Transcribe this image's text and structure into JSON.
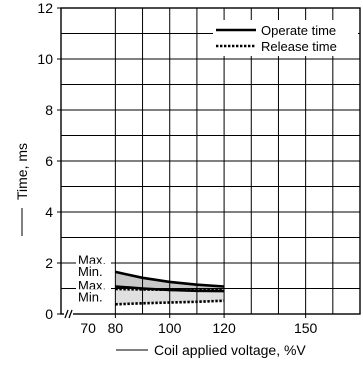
{
  "chart_data": {
    "type": "line",
    "title": "",
    "xlabel": "Coil applied voltage, %V",
    "ylabel": "Time, ms",
    "x_ticks": [
      70,
      80,
      100,
      120,
      150
    ],
    "x_tick_labels": [
      "70",
      "80",
      "100",
      "120",
      "150"
    ],
    "y_ticks": [
      0,
      2,
      4,
      6,
      8,
      10,
      12
    ],
    "y_tick_labels": [
      "0",
      "2",
      "4",
      "6",
      "8",
      "10",
      "12"
    ],
    "xlim": [
      60,
      170
    ],
    "ylim": [
      0,
      12
    ],
    "grid": true,
    "axis_break": true,
    "legend_position": "top-right",
    "series": [
      {
        "name": "Operate time",
        "style": "solid",
        "color": "#000000",
        "bands": [
          {
            "label": "Max.",
            "x": [
              80,
              90,
              100,
              110,
              120
            ],
            "y": [
              1.65,
              1.42,
              1.26,
              1.15,
              1.08
            ]
          },
          {
            "label": "Min.",
            "x": [
              80,
              90,
              100,
              110,
              120
            ],
            "y": [
              1.08,
              1.0,
              0.94,
              0.91,
              0.9
            ]
          }
        ],
        "fill": "#c8c8c8"
      },
      {
        "name": "Release time",
        "style": "dotted",
        "color": "#000000",
        "bands": [
          {
            "label": "Max.",
            "x": [
              80,
              90,
              100,
              110,
              120
            ],
            "y": [
              0.98,
              0.96,
              0.95,
              0.95,
              0.95
            ]
          },
          {
            "label": "Min.",
            "x": [
              80,
              90,
              100,
              110,
              120
            ],
            "y": [
              0.38,
              0.42,
              0.45,
              0.48,
              0.52
            ]
          }
        ],
        "fill": "#e0e0e0"
      }
    ],
    "band_labels": [
      "Max.",
      "Min.",
      "Max.",
      "Min."
    ]
  }
}
